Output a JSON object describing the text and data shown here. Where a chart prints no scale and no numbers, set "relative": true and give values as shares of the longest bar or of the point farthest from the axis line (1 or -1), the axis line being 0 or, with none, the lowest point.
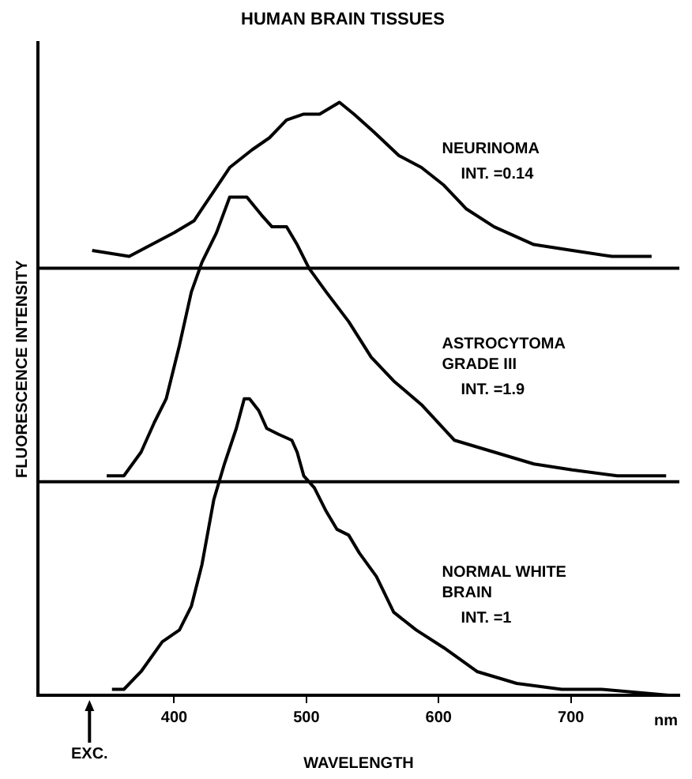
{
  "chart_data": {
    "type": "line",
    "title": "HUMAN BRAIN TISSUES",
    "xlabel": "WAVELENGTH",
    "ylabel": "FLUORESCENCE INTENSITY",
    "relative": true,
    "legend": false,
    "grid": false,
    "xlim": [
      297,
      782
    ],
    "xticks": [
      400,
      500,
      600,
      700
    ],
    "series": [
      {
        "name": "NEURINOMA",
        "color": "#000000",
        "x": [
          338,
          366,
          383,
          400,
          415,
          430,
          442,
          459,
          472,
          485,
          498,
          510,
          525,
          536,
          551,
          570,
          587,
          604,
          621,
          642,
          672,
          701,
          731,
          761
        ],
        "values": [
          0.75,
          0.74,
          0.76,
          0.78,
          0.8,
          0.85,
          0.89,
          0.92,
          0.94,
          0.97,
          0.98,
          0.98,
          1.0,
          0.98,
          0.95,
          0.91,
          0.89,
          0.86,
          0.82,
          0.79,
          0.76,
          0.75,
          0.74,
          0.74
        ]
      },
      {
        "name": "ASTROCYTOMA GRADE III",
        "color": "#000000",
        "x": [
          349,
          362,
          375,
          385,
          394,
          404,
          413,
          421,
          432,
          442,
          455,
          466,
          474,
          485,
          493,
          502,
          515,
          532,
          549,
          566,
          587,
          612,
          642,
          672,
          701,
          735,
          772
        ],
        "values": [
          0.37,
          0.37,
          0.41,
          0.46,
          0.5,
          0.59,
          0.68,
          0.73,
          0.78,
          0.84,
          0.84,
          0.81,
          0.79,
          0.79,
          0.76,
          0.72,
          0.68,
          0.63,
          0.57,
          0.53,
          0.49,
          0.43,
          0.41,
          0.39,
          0.38,
          0.37,
          0.37
        ]
      },
      {
        "name": "NORMAL WHITE BRAIN",
        "color": "#000000",
        "x": [
          353,
          362,
          375,
          391,
          404,
          413,
          421,
          430,
          438,
          447,
          453,
          457,
          464,
          470,
          479,
          489,
          493,
          498,
          506,
          515,
          523,
          532,
          540,
          553,
          566,
          583,
          604,
          629,
          659,
          693,
          723,
          774
        ],
        "values": [
          0.01,
          0.01,
          0.04,
          0.09,
          0.11,
          0.15,
          0.22,
          0.33,
          0.39,
          0.45,
          0.5,
          0.5,
          0.48,
          0.45,
          0.44,
          0.43,
          0.41,
          0.37,
          0.35,
          0.31,
          0.28,
          0.27,
          0.24,
          0.2,
          0.14,
          0.11,
          0.08,
          0.04,
          0.02,
          0.01,
          0.01,
          0.0
        ]
      }
    ],
    "ref_lines": [
      {
        "axis": "y",
        "value": 0.72,
        "color": "#000000"
      },
      {
        "axis": "y",
        "value": 0.36,
        "color": "#000000"
      }
    ],
    "annotations": [
      "INT. =0.14",
      "INT. =1.9",
      "INT. =1",
      {
        "text": "EXC.",
        "x": 336
      },
      "nm"
    ]
  }
}
